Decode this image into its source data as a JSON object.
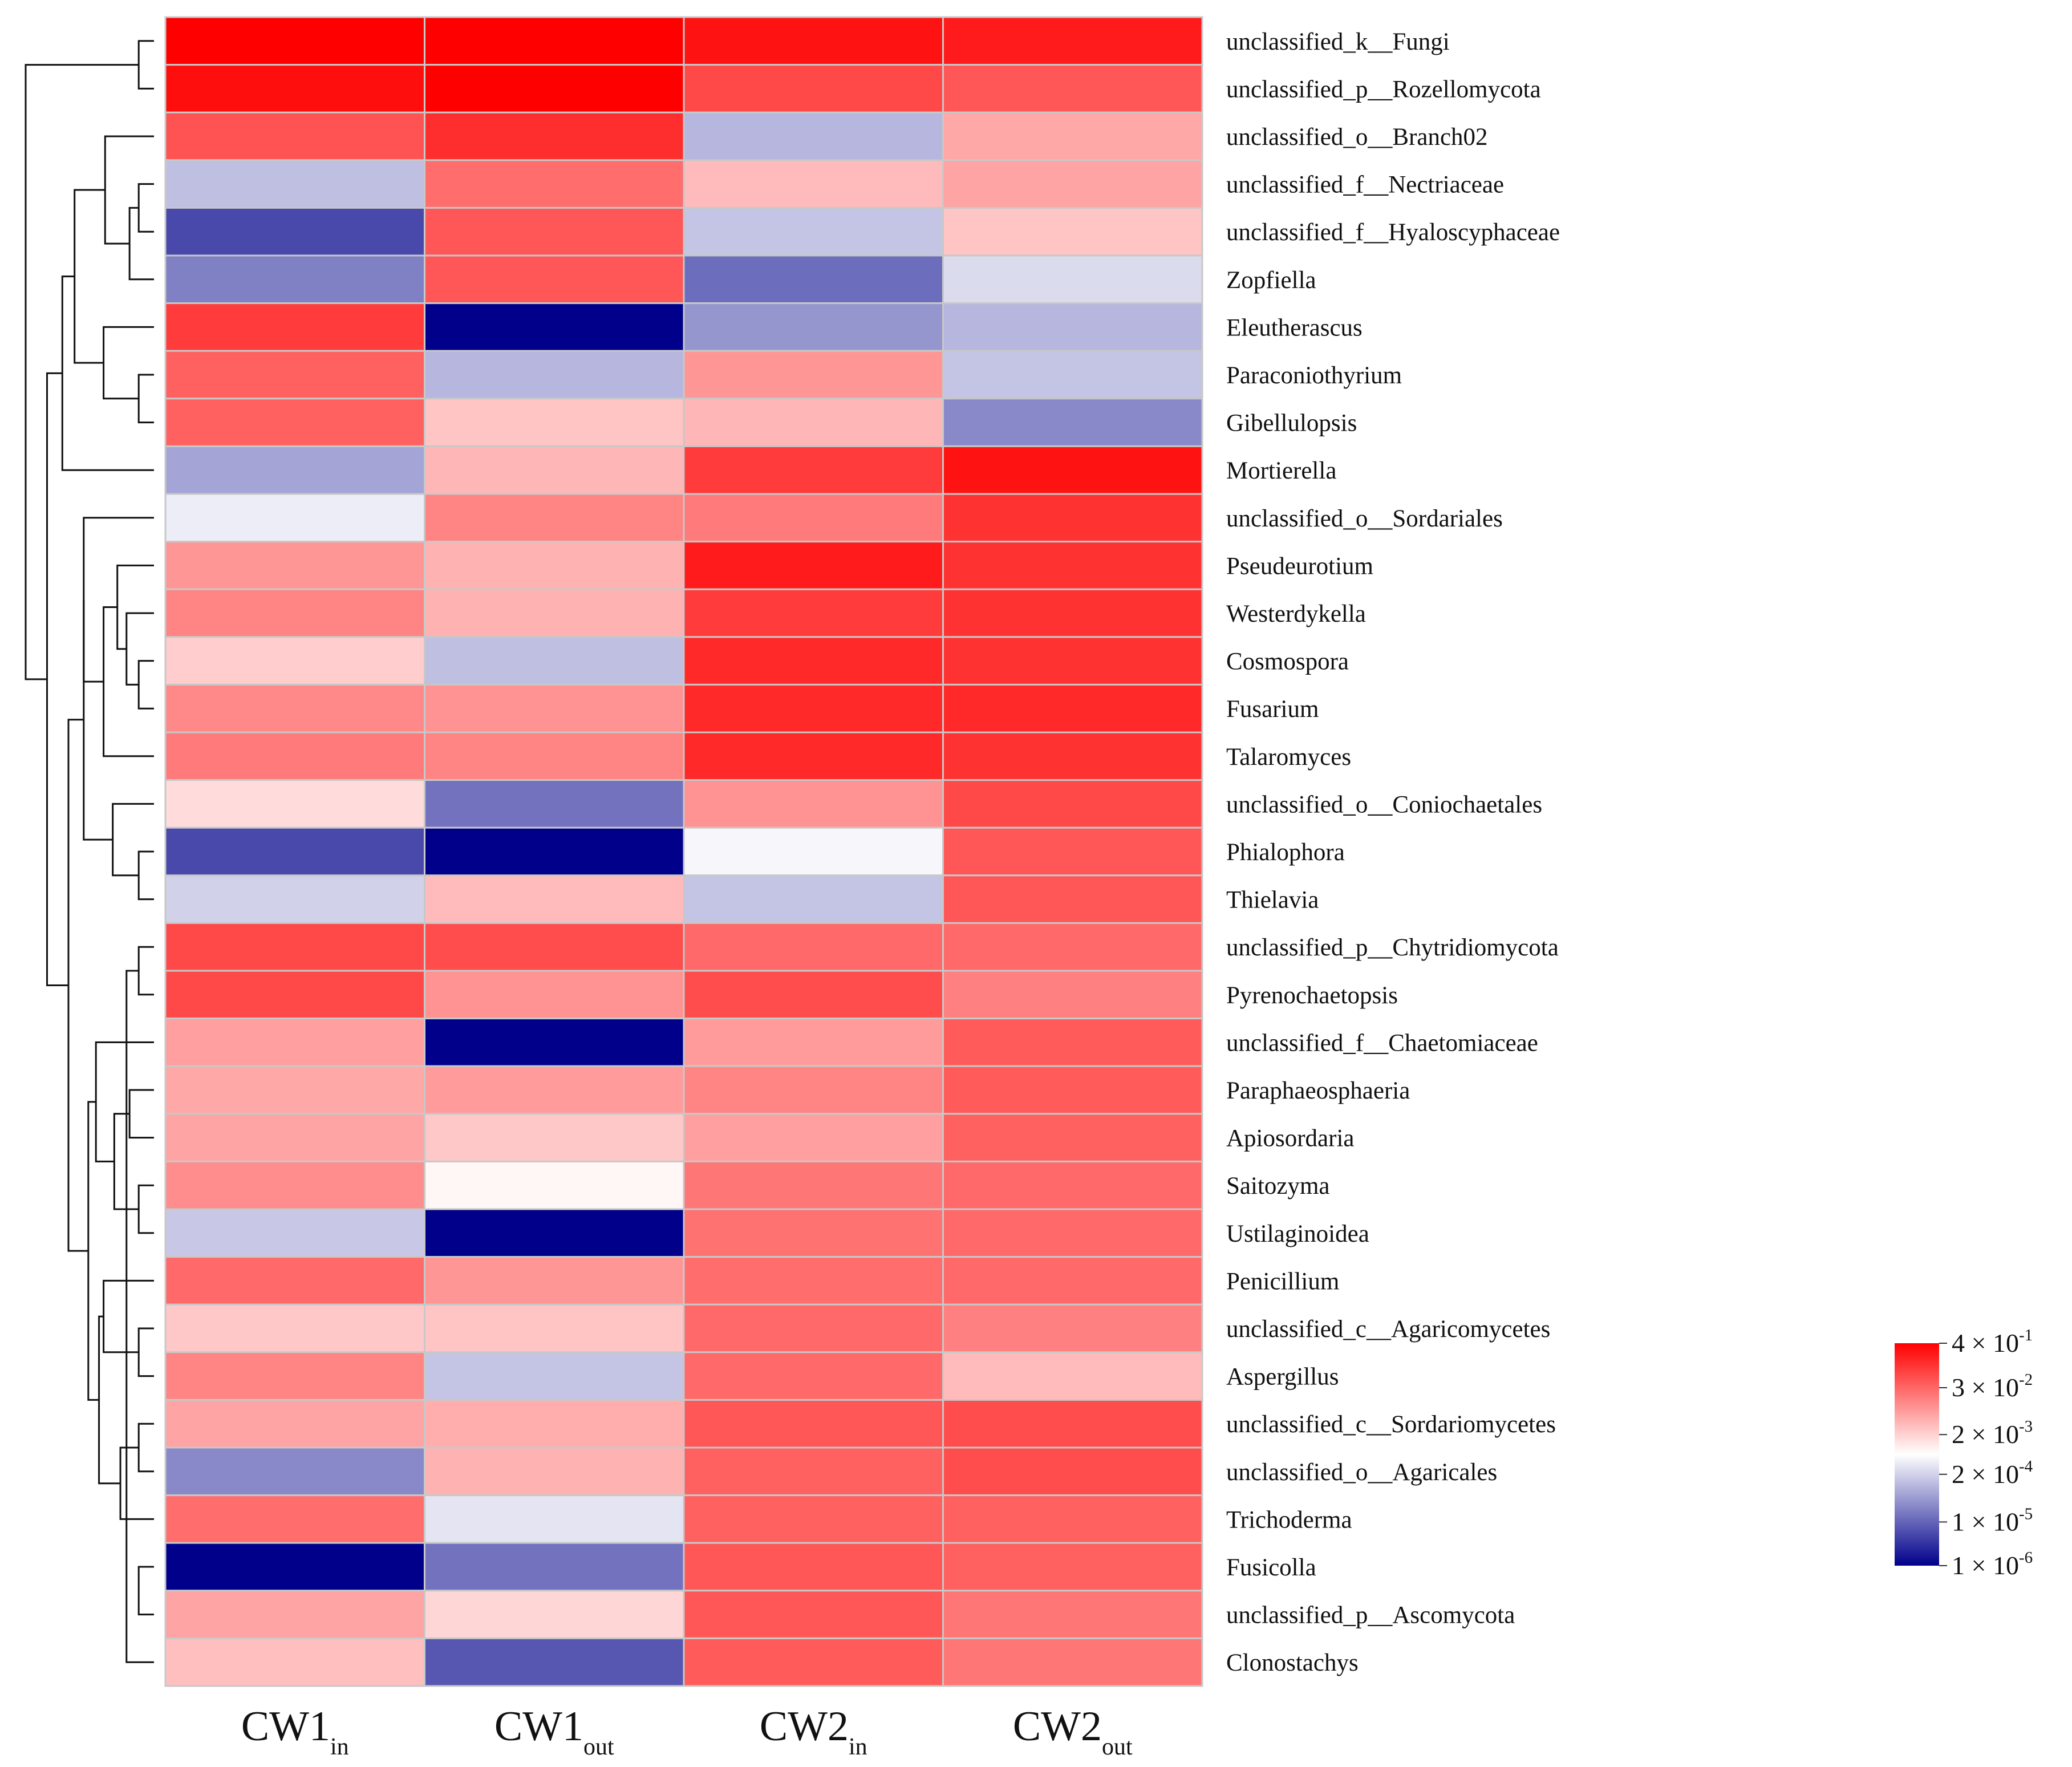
{
  "chart_data": {
    "type": "heatmap",
    "title": "",
    "scale": "log10",
    "columns": [
      {
        "base": "CW1",
        "sub": "in"
      },
      {
        "base": "CW1",
        "sub": "out"
      },
      {
        "base": "CW2",
        "sub": "in"
      },
      {
        "base": "CW2",
        "sub": "out"
      }
    ],
    "rows": [
      "unclassified_k__Fungi",
      "unclassified_p__Rozellomycota",
      "unclassified_o__Branch02",
      "unclassified_f__Nectriaceae",
      "unclassified_f__Hyaloscyphaceae",
      "Zopfiella",
      "Eleutherascus",
      "Paraconiothyrium",
      "Gibellulopsis",
      "Mortierella",
      "unclassified_o__Sordariales",
      "Pseudeurotium",
      "Westerdykella",
      "Cosmospora",
      "Fusarium",
      "Talaromyces",
      "unclassified_o__Coniochaetales",
      "Phialophora",
      "Thielavia",
      "unclassified_p__Chytridiomycota",
      "Pyrenochaetopsis",
      "unclassified_f__Chaetomiaceae",
      "Paraphaeosphaeria",
      "Apiosordaria",
      "Saitozyma",
      "Ustilaginoidea",
      "Penicillium",
      "unclassified_c__Agaricomycetes",
      "Aspergillus",
      "unclassified_c__Sordariomycetes",
      "unclassified_o__Agaricales",
      "Trichoderma",
      "Fusicolla",
      "unclassified_p__Ascomycota",
      "Clonostachys"
    ],
    "log10_values": [
      [
        -0.4,
        -0.4,
        -0.6,
        -0.7
      ],
      [
        -0.55,
        -0.4,
        -1.2,
        -1.35
      ],
      [
        -1.3,
        -0.9,
        -4.0,
        -2.25
      ],
      [
        -3.9,
        -1.6,
        -2.45,
        -2.2
      ],
      [
        -5.2,
        -1.35,
        -3.85,
        -2.55
      ],
      [
        -4.6,
        -1.35,
        -4.8,
        -3.6
      ],
      [
        -1.05,
        -6.0,
        -4.35,
        -4.0
      ],
      [
        -1.45,
        -4.0,
        -2.05,
        -3.85
      ],
      [
        -1.45,
        -2.55,
        -2.4,
        -4.5
      ],
      [
        -4.2,
        -2.4,
        -1.05,
        -0.6
      ],
      [
        -3.4,
        -1.85,
        -1.75,
        -0.95
      ],
      [
        -2.05,
        -2.35,
        -0.7,
        -0.95
      ],
      [
        -1.85,
        -2.35,
        -1.05,
        -0.95
      ],
      [
        -2.65,
        -3.9,
        -0.85,
        -0.95
      ],
      [
        -1.9,
        -2.0,
        -0.85,
        -0.85
      ],
      [
        -1.75,
        -1.85,
        -0.85,
        -0.95
      ],
      [
        -2.8,
        -4.75,
        -2.0,
        -1.2
      ],
      [
        -5.2,
        -6.0,
        -3.3,
        -1.35
      ],
      [
        -3.7,
        -2.45,
        -3.85,
        -1.35
      ],
      [
        -1.2,
        -1.25,
        -1.55,
        -1.55
      ],
      [
        -1.2,
        -2.0,
        -1.25,
        -1.8
      ],
      [
        -2.15,
        -6.0,
        -2.1,
        -1.4
      ],
      [
        -2.25,
        -2.1,
        -1.85,
        -1.4
      ],
      [
        -2.2,
        -2.6,
        -2.15,
        -1.45
      ],
      [
        -1.95,
        -3.1,
        -1.7,
        -1.55
      ],
      [
        -3.8,
        -6.0,
        -1.65,
        -1.55
      ],
      [
        -1.55,
        -2.05,
        -1.6,
        -1.55
      ],
      [
        -2.6,
        -2.55,
        -1.55,
        -1.8
      ],
      [
        -1.85,
        -3.85,
        -1.55,
        -2.45
      ],
      [
        -2.2,
        -2.3,
        -1.35,
        -1.25
      ],
      [
        -4.5,
        -2.35,
        -1.45,
        -1.25
      ],
      [
        -1.6,
        -3.5,
        -1.45,
        -1.45
      ],
      [
        -6.0,
        -4.75,
        -1.35,
        -1.45
      ],
      [
        -2.2,
        -2.75,
        -1.35,
        -1.7
      ],
      [
        -2.5,
        -5.05,
        -1.4,
        -1.7
      ]
    ],
    "colorbar": {
      "colors": {
        "high": "#ff0000",
        "mid": "#ffffff",
        "low": "#00008b"
      },
      "log10_range": [
        -6,
        -0.4
      ],
      "ticks": [
        {
          "value": -0.4,
          "mantissa": "4 × 10",
          "exponent": "-1"
        },
        {
          "value": -1.52,
          "mantissa": "3 × 10",
          "exponent": "-2"
        },
        {
          "value": -2.7,
          "mantissa": "2 × 10",
          "exponent": "-3"
        },
        {
          "value": -3.7,
          "mantissa": "2 × 10",
          "exponent": "-4"
        },
        {
          "value": -4.9,
          "mantissa": "1 × 10",
          "exponent": "-5"
        },
        {
          "value": -6.0,
          "mantissa": "1 × 10",
          "exponent": "-6"
        }
      ]
    },
    "row_dendrogram": {
      "leaf_order": "top-to-bottom matches rows",
      "merges": [
        [
          0,
          1,
          1.0
        ],
        [
          3,
          4,
          1.0
        ],
        [
          7,
          8,
          1.0
        ],
        [
          13,
          14,
          1.0
        ],
        [
          17,
          18,
          1.0
        ],
        [
          19,
          20,
          1.0
        ],
        [
          24,
          25,
          1.0
        ],
        [
          27,
          28,
          1.0
        ],
        [
          29,
          30,
          1.0
        ],
        [
          32,
          33,
          1.0
        ],
        [
          -2,
          5,
          1.6
        ],
        [
          12,
          -4,
          1.8
        ],
        [
          -6,
          34,
          1.8
        ],
        [
          22,
          23,
          1.6
        ],
        [
          -9,
          31,
          2.2
        ],
        [
          11,
          -12,
          2.4
        ],
        [
          -14,
          -7,
          2.6
        ],
        [
          16,
          -5,
          2.7
        ],
        [
          -11,
          2,
          3.2
        ],
        [
          6,
          -3,
          3.3
        ],
        [
          -16,
          15,
          3.3
        ],
        [
          -8,
          26,
          3.3
        ],
        [
          -22,
          -15,
          3.6
        ],
        [
          21,
          -17,
          3.8
        ],
        [
          -24,
          -23,
          4.3
        ],
        [
          10,
          -21,
          4.6
        ],
        [
          -26,
          -18,
          4.6
        ],
        [
          -19,
          -20,
          5.2
        ],
        [
          -27,
          -25,
          5.6
        ],
        [
          9,
          -28,
          6.0
        ],
        [
          -29,
          -30,
          7.0
        ],
        [
          -1,
          -31,
          8.4
        ]
      ]
    }
  }
}
